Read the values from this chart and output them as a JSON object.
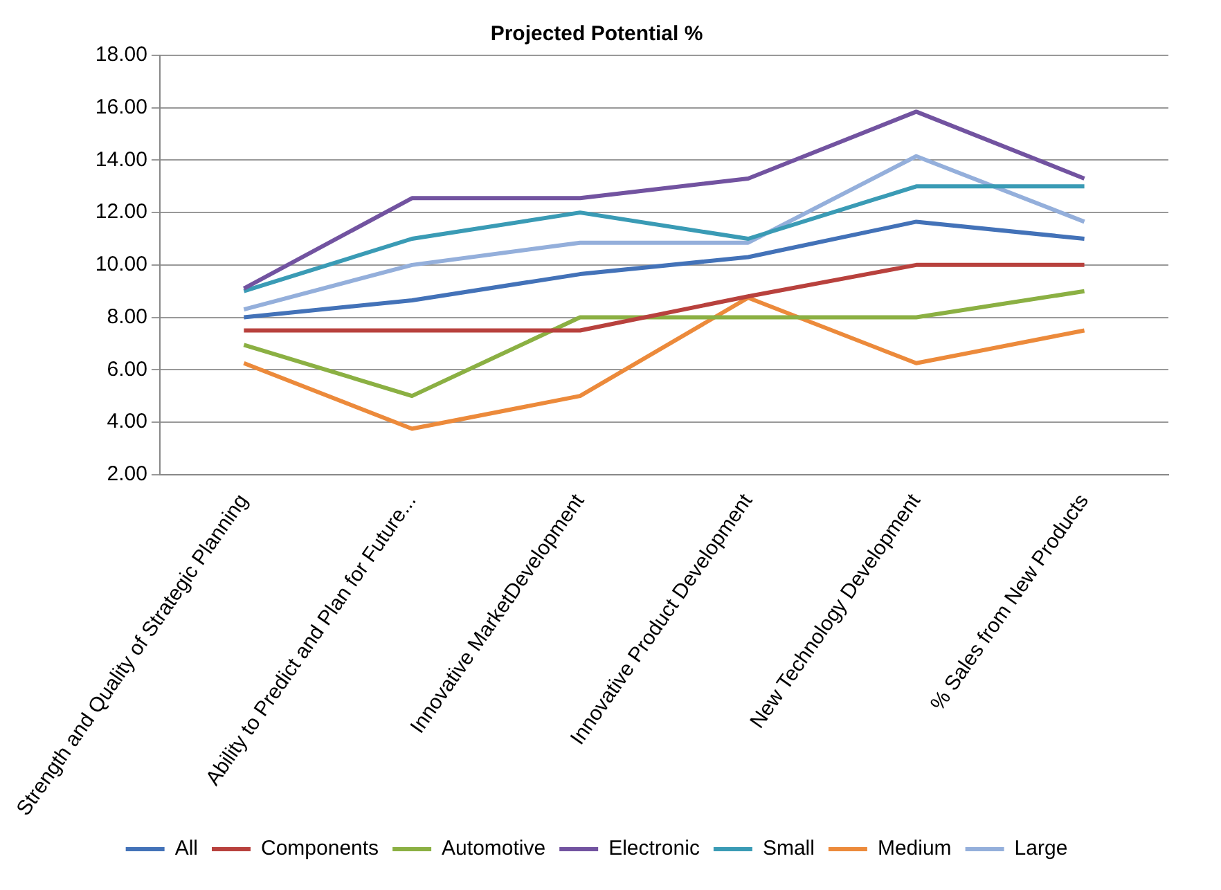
{
  "chart_data": {
    "type": "line",
    "title": "Projected Potential %",
    "categories": [
      "Strength and Quality of Strategic Planning",
      "Ability to Predict and Plan for Future...",
      "Innovative MarketDevelopment",
      "Innovative Product Development",
      "New Technology Development",
      "% Sales from New Products"
    ],
    "series": [
      {
        "name": "All",
        "color": "#4372b8",
        "values": [
          8.0,
          8.65,
          9.65,
          10.3,
          11.65,
          11.0
        ]
      },
      {
        "name": "Components",
        "color": "#b8413d",
        "values": [
          7.5,
          7.5,
          7.5,
          8.8,
          10.0,
          10.0
        ]
      },
      {
        "name": "Automotive",
        "color": "#8bb043",
        "values": [
          6.95,
          5.0,
          8.0,
          8.0,
          8.0,
          9.0
        ]
      },
      {
        "name": "Electronic",
        "color": "#7253a0",
        "values": [
          9.1,
          12.55,
          12.55,
          13.3,
          15.85,
          13.3
        ]
      },
      {
        "name": "Small",
        "color": "#3a9bb5",
        "values": [
          9.0,
          11.0,
          12.0,
          11.0,
          13.0,
          13.0
        ]
      },
      {
        "name": "Medium",
        "color": "#ec8a3b",
        "values": [
          6.25,
          3.75,
          5.0,
          8.75,
          6.25,
          7.5
        ]
      },
      {
        "name": "Large",
        "color": "#94afdb",
        "values": [
          8.3,
          10.0,
          10.85,
          10.85,
          14.15,
          11.65
        ]
      }
    ],
    "ylim": [
      2,
      18
    ],
    "yticks": [
      {
        "value": 2,
        "label": "2.00"
      },
      {
        "value": 4,
        "label": "4.00"
      },
      {
        "value": 6,
        "label": "6.00"
      },
      {
        "value": 8,
        "label": "8.00"
      },
      {
        "value": 10,
        "label": "10.00"
      },
      {
        "value": 12,
        "label": "12.00"
      },
      {
        "value": 14,
        "label": "14.00"
      },
      {
        "value": 16,
        "label": "16.00"
      },
      {
        "value": 18,
        "label": "18.00"
      }
    ],
    "grid": "y",
    "legend": "bottom",
    "marker": "none",
    "line_style": "solid"
  }
}
